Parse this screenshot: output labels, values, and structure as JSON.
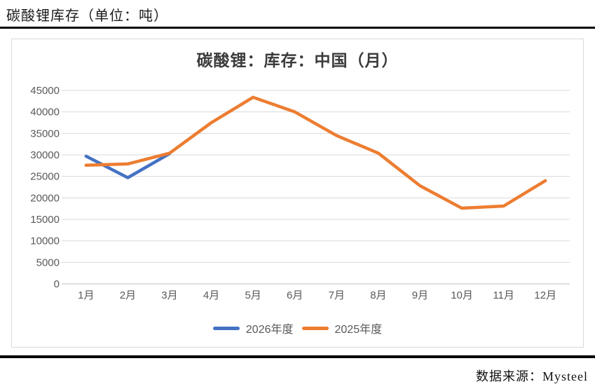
{
  "header": {
    "title": "碳酸锂库存（单位：吨）"
  },
  "footer": {
    "source": "数据来源：Mysteel"
  },
  "chart_data": {
    "type": "line",
    "title": "碳酸锂：库存：中国（月）",
    "categories": [
      "1月",
      "2月",
      "3月",
      "4月",
      "5月",
      "6月",
      "7月",
      "8月",
      "9月",
      "10月",
      "11月",
      "12月"
    ],
    "series": [
      {
        "name": "2026年度",
        "color": "#4472C4",
        "values": [
          29700,
          24700,
          30300,
          null,
          null,
          null,
          null,
          null,
          null,
          null,
          null,
          null
        ]
      },
      {
        "name": "2025年度",
        "color": "#ED7D31",
        "values": [
          27600,
          27900,
          30400,
          37500,
          43400,
          40000,
          34500,
          30400,
          22800,
          17600,
          18100,
          24000
        ]
      }
    ],
    "ylim": [
      0,
      45000
    ],
    "yticks": [
      0,
      5000,
      10000,
      15000,
      20000,
      25000,
      30000,
      35000,
      40000,
      45000
    ],
    "xlabel": "",
    "ylabel": "",
    "grid": true,
    "legend_position": "bottom",
    "gridline_color": "#D9D9D9",
    "axis_line_color": "#BFBFBF",
    "axis_label_color": "#595959",
    "line_width": 4.5
  }
}
